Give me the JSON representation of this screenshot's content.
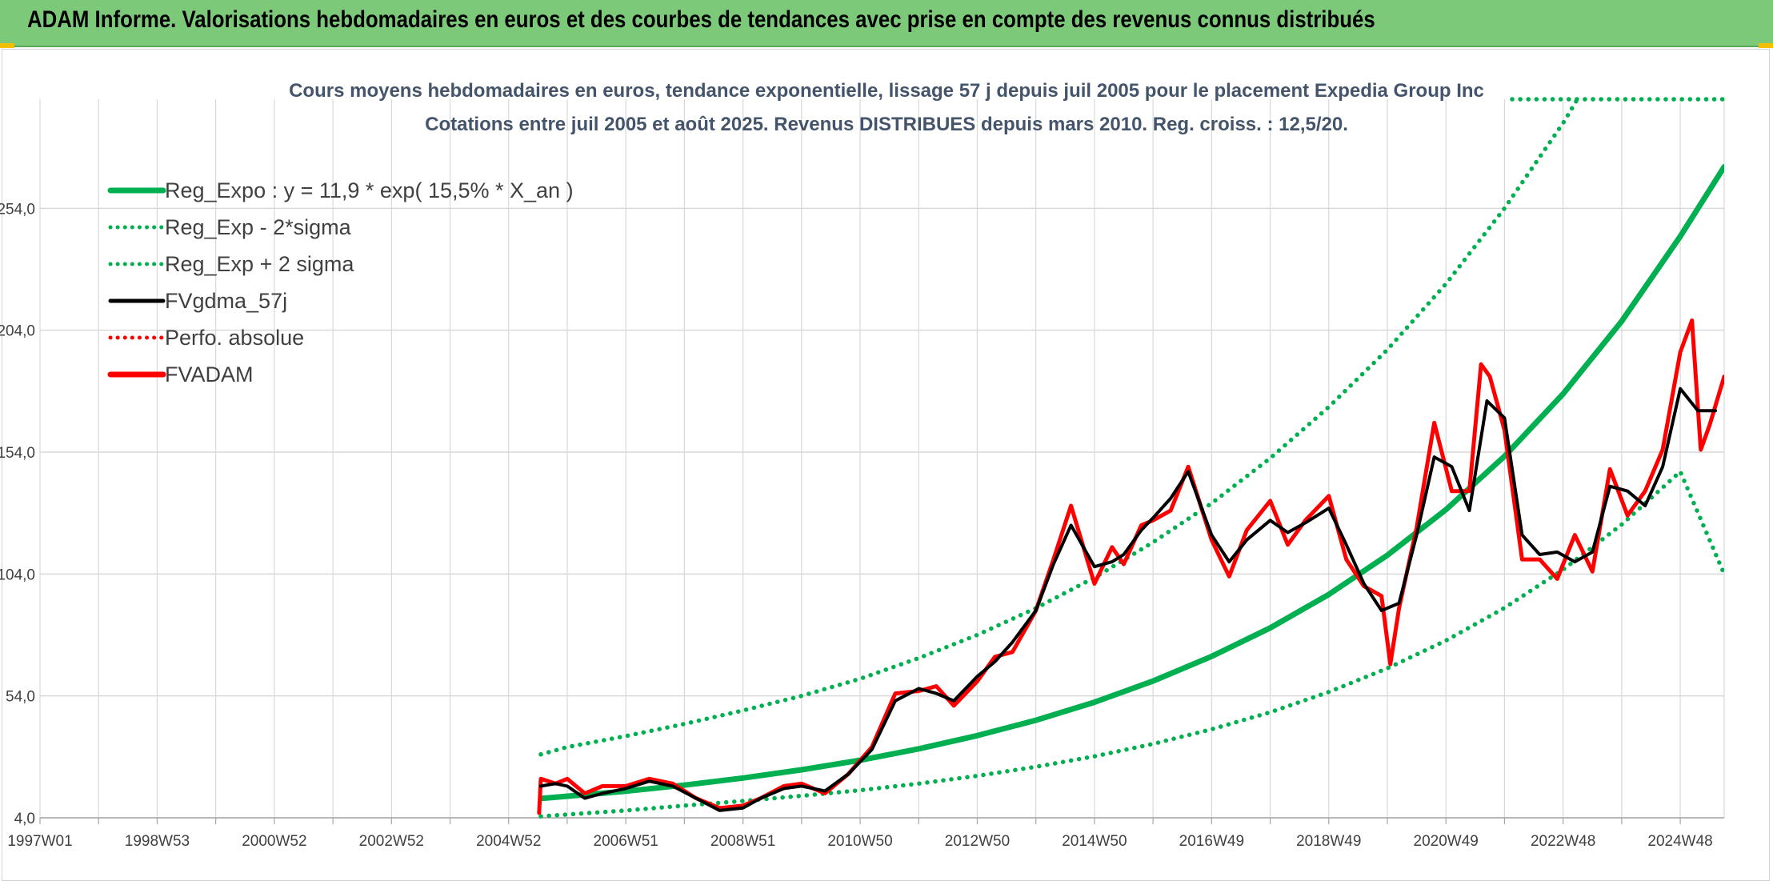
{
  "banner": {
    "title": "ADAM Informe. Valorisations hebdomadaires en euros et des courbes de tendances avec prise en compte des revenus connus distribués"
  },
  "colors": {
    "banner_bg": "#7cc97a",
    "trend": "#00b050",
    "price": "#ff0000",
    "moving_average": "#000000",
    "grid": "#d9d9d9"
  },
  "chart_data": {
    "type": "line",
    "title": "Cours moyens hebdomadaires en euros, tendance exponentielle, lissage 57 j depuis juil 2005 pour le placement Expedia Group Inc",
    "subtitle": "Cotations entre juil 2005 et août 2025. Revenus DISTRIBUES depuis mars 2010. Reg. croiss. : 12,5/20.",
    "xlabel": "",
    "ylabel": "",
    "x_tick_labels": [
      "1997W01",
      "1998W53",
      "2000W52",
      "2002W52",
      "2004W52",
      "2006W51",
      "2008W51",
      "2010W50",
      "2012W50",
      "2014W50",
      "2016W49",
      "2018W49",
      "2020W49",
      "2022W48",
      "2024W48"
    ],
    "x_range": [
      1997.0,
      2025.75
    ],
    "y_tick_labels": [
      "4,0",
      "54,0",
      "104,0",
      "154,0",
      "204,0",
      "254,0"
    ],
    "y_ticks": [
      4,
      54,
      104,
      154,
      204,
      254
    ],
    "ylim": [
      4,
      304
    ],
    "grid": true,
    "legend_position": "top-left",
    "legend": [
      {
        "label": "Reg_Expo : y = 11,9 * exp( 15,5% *  X_an )",
        "style": "solid-thick",
        "color": "#00b050"
      },
      {
        "label": "Reg_Exp - 2*sigma",
        "style": "dotted",
        "color": "#00b050"
      },
      {
        "label": "Reg_Exp + 2 sigma",
        "style": "dotted",
        "color": "#00b050"
      },
      {
        "label": "FVgdma_57j",
        "style": "solid",
        "color": "#000000"
      },
      {
        "label": "Perfo. absolue",
        "style": "dotted",
        "color": "#ff0000"
      },
      {
        "label": "FVADAM",
        "style": "solid-thick",
        "color": "#ff0000"
      }
    ],
    "series": [
      {
        "name": "Reg_Expo : y = 11,9 * exp( 15,5% *  X_an )",
        "x": [
          2005.55,
          2007.0,
          2008.0,
          2009.0,
          2010.0,
          2011.0,
          2012.0,
          2013.0,
          2014.0,
          2015.0,
          2016.0,
          2017.0,
          2018.0,
          2019.0,
          2020.0,
          2021.0,
          2022.0,
          2023.0,
          2024.0,
          2025.0,
          2025.75
        ],
        "y": [
          11.9,
          14.9,
          17.4,
          20.3,
          23.7,
          27.6,
          32.3,
          37.7,
          44.0,
          51.4,
          60.1,
          70.2,
          81.9,
          95.6,
          111.7,
          130.4,
          152.3,
          177.9,
          207.7,
          242.5,
          271.0
        ]
      },
      {
        "name": "Reg_Exp - 2*sigma",
        "x": [
          2005.55,
          2007.0,
          2008.0,
          2009.0,
          2010.0,
          2011.0,
          2012.0,
          2013.0,
          2014.0,
          2015.0,
          2016.0,
          2017.0,
          2018.0,
          2019.0,
          2020.0,
          2021.0,
          2022.0,
          2023.0,
          2024.0,
          2025.0,
          2025.75
        ],
        "y": [
          4.6,
          7.0,
          9.0,
          10.9,
          13.0,
          15.3,
          18.0,
          21.2,
          24.9,
          29.2,
          34.3,
          40.3,
          47.3,
          55.6,
          65.3,
          76.7,
          90.1,
          105.8,
          124.3,
          146.0,
          104.0
        ]
      },
      {
        "name": "Reg_Exp + 2 sigma",
        "x": [
          2005.55,
          2006.0,
          2007.0,
          2008.0,
          2009.0,
          2010.0,
          2011.0,
          2012.0,
          2013.0,
          2014.0,
          2015.0,
          2016.0,
          2017.0,
          2018.0,
          2019.0,
          2020.0,
          2021.0,
          2022.0,
          2023.0,
          2024.0,
          2025.75
        ],
        "y": [
          30.0,
          33.0,
          37.5,
          42.5,
          48.0,
          54.0,
          61.0,
          69.5,
          79.0,
          90.0,
          102.5,
          117.0,
          133.0,
          151.5,
          172.5,
          196.0,
          223.0,
          254.0,
          289.0,
          329.0,
          430.0
        ]
      },
      {
        "name": "FVgdma_57j",
        "x": [
          2005.55,
          2005.8,
          2006.0,
          2006.3,
          2006.6,
          2007.0,
          2007.4,
          2007.8,
          2008.2,
          2008.6,
          2009.0,
          2009.3,
          2009.7,
          2010.0,
          2010.4,
          2010.8,
          2011.2,
          2011.6,
          2012.0,
          2012.3,
          2012.6,
          2013.0,
          2013.3,
          2013.6,
          2014.0,
          2014.3,
          2014.6,
          2015.0,
          2015.3,
          2015.5,
          2015.8,
          2016.0,
          2016.3,
          2016.6,
          2017.0,
          2017.3,
          2017.6,
          2018.0,
          2018.3,
          2018.6,
          2019.0,
          2019.3,
          2019.6,
          2019.9,
          2020.2,
          2020.5,
          2020.8,
          2021.1,
          2021.4,
          2021.7,
          2022.0,
          2022.3,
          2022.6,
          2022.9,
          2023.2,
          2023.5,
          2023.8,
          2024.1,
          2024.4,
          2024.7,
          2025.0,
          2025.3,
          2025.6
        ],
        "y": [
          17,
          18,
          17,
          12,
          14,
          16,
          19,
          17,
          12,
          7,
          8,
          12,
          16,
          17,
          15,
          22,
          32,
          52,
          57,
          55,
          52,
          62,
          68,
          76,
          89,
          108,
          124,
          107,
          109,
          112,
          122,
          127,
          135,
          146,
          120,
          109,
          118,
          126,
          121,
          125,
          131,
          116,
          100,
          89,
          92,
          120,
          152,
          148,
          130,
          175,
          168,
          120,
          112,
          113,
          109,
          113,
          140,
          138,
          132,
          148,
          180,
          171,
          171
        ]
      },
      {
        "name": "FVADAM",
        "x": [
          2005.52,
          2005.55,
          2005.8,
          2006.0,
          2006.3,
          2006.6,
          2007.0,
          2007.4,
          2007.8,
          2008.2,
          2008.6,
          2009.0,
          2009.3,
          2009.7,
          2010.0,
          2010.4,
          2010.8,
          2011.2,
          2011.6,
          2012.0,
          2012.3,
          2012.6,
          2013.0,
          2013.3,
          2013.6,
          2014.0,
          2014.3,
          2014.6,
          2015.0,
          2015.3,
          2015.5,
          2015.8,
          2016.0,
          2016.3,
          2016.6,
          2017.0,
          2017.3,
          2017.6,
          2018.0,
          2018.3,
          2018.6,
          2019.0,
          2019.3,
          2019.6,
          2019.9,
          2020.05,
          2020.2,
          2020.5,
          2020.8,
          2021.1,
          2021.4,
          2021.6,
          2021.75,
          2022.0,
          2022.3,
          2022.6,
          2022.9,
          2023.2,
          2023.5,
          2023.8,
          2024.1,
          2024.4,
          2024.7,
          2025.0,
          2025.2,
          2025.35,
          2025.5,
          2025.75
        ],
        "y": [
          6,
          20,
          18,
          20,
          14,
          17,
          17,
          20,
          18,
          12,
          8,
          9,
          12,
          17,
          18,
          14,
          22,
          33,
          55,
          56,
          58,
          50,
          60,
          70,
          72,
          89,
          110,
          132,
          100,
          115,
          108,
          124,
          126,
          130,
          148,
          118,
          103,
          122,
          134,
          116,
          126,
          136,
          110,
          99,
          95,
          67,
          90,
          123,
          166,
          138,
          138,
          190,
          185,
          163,
          110,
          110,
          102,
          120,
          105,
          147,
          128,
          138,
          155,
          195,
          208,
          155,
          165,
          185
        ]
      }
    ]
  }
}
